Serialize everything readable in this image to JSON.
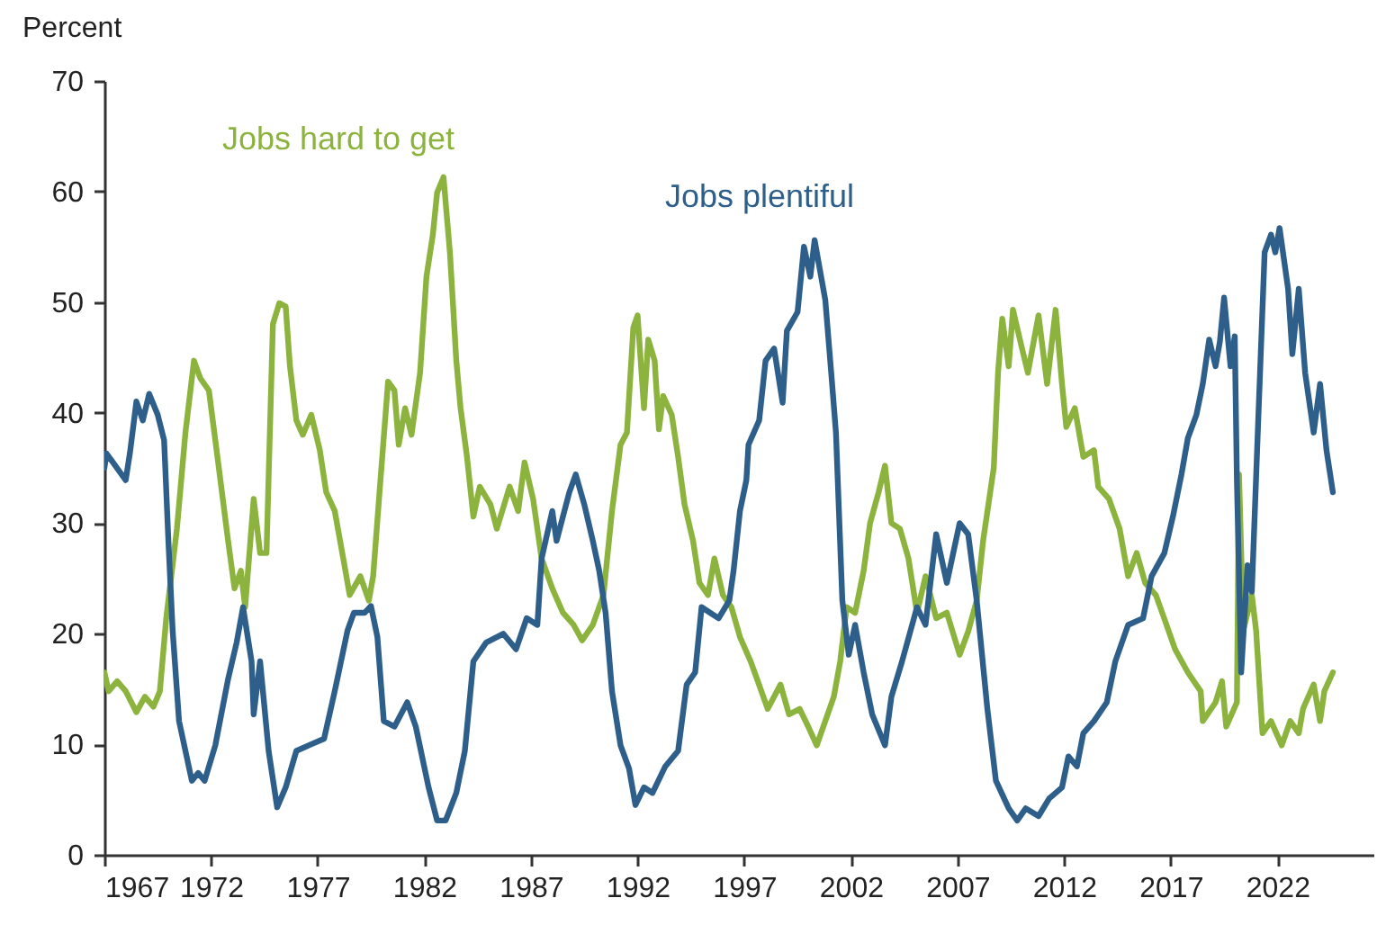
{
  "chart_data": {
    "type": "line",
    "ylabel": "Percent",
    "xlim": [
      1967,
      2026.5
    ],
    "xticks": [
      1967,
      1972,
      1977,
      1982,
      1987,
      1992,
      1997,
      2002,
      2007,
      2012,
      2017,
      2022
    ],
    "ylim": [
      0,
      70
    ],
    "yticks": [
      0,
      10,
      20,
      30,
      40,
      50,
      60,
      70
    ],
    "grid": false,
    "legend": false,
    "marker": "none",
    "line_style": "solid",
    "series": [
      {
        "name": "Jobs hard to get",
        "color": "#8db33f",
        "x": [
          1967.0,
          1967.2,
          1967.6,
          1968.0,
          1968.5,
          1968.9,
          1969.3,
          1969.6,
          1969.9,
          1970.4,
          1970.8,
          1971.2,
          1971.5,
          1971.9,
          1972.3,
          1972.8,
          1973.1,
          1973.4,
          1973.6,
          1974.0,
          1974.3,
          1974.6,
          1974.9,
          1975.2,
          1975.5,
          1975.7,
          1976.0,
          1976.3,
          1976.7,
          1977.1,
          1977.4,
          1977.8,
          1978.2,
          1978.5,
          1979.0,
          1979.4,
          1979.6,
          1979.9,
          1980.3,
          1980.6,
          1980.8,
          1981.1,
          1981.4,
          1981.8,
          1982.1,
          1982.4,
          1982.6,
          1982.9,
          1983.2,
          1983.5,
          1983.7,
          1984.0,
          1984.3,
          1984.6,
          1985.1,
          1985.4,
          1986.0,
          1986.4,
          1986.7,
          1987.1,
          1987.5,
          1988.0,
          1988.5,
          1989.0,
          1989.4,
          1989.9,
          1990.4,
          1990.8,
          1991.2,
          1991.5,
          1991.8,
          1992.0,
          1992.3,
          1992.5,
          1992.8,
          1993.0,
          1993.2,
          1993.6,
          1993.9,
          1994.2,
          1994.6,
          1994.9,
          1995.3,
          1995.6,
          1996.0,
          1996.4,
          1996.8,
          1997.3,
          1997.6,
          1998.1,
          1998.7,
          1999.1,
          1999.6,
          2000.0,
          2000.4,
          2000.8,
          2001.2,
          2001.5,
          2001.8,
          2002.2,
          2002.6,
          2002.9,
          2003.3,
          2003.6,
          2003.9,
          2004.3,
          2004.7,
          2005.1,
          2005.5,
          2006.0,
          2006.5,
          2007.1,
          2007.5,
          2007.9,
          2008.2,
          2008.7,
          2008.9,
          2009.1,
          2009.4,
          2009.6,
          2010.0,
          2010.3,
          2010.8,
          2011.2,
          2011.6,
          2011.9,
          2012.1,
          2012.5,
          2012.9,
          2013.4,
          2013.6,
          2014.1,
          2014.6,
          2015.0,
          2015.4,
          2015.8,
          2016.3,
          2016.8,
          2017.2,
          2017.8,
          2018.4,
          2018.5,
          2019.1,
          2019.4,
          2019.6,
          2020.1,
          2020.2,
          2020.4,
          2020.8,
          2021.0,
          2021.3,
          2021.7,
          2022.2,
          2022.6,
          2023.0,
          2023.2,
          2023.7,
          2024.0,
          2024.2,
          2024.6
        ],
        "values": [
          16.5,
          14.8,
          15.7,
          14.8,
          12.9,
          14.3,
          13.4,
          14.8,
          21.4,
          29.5,
          38.2,
          44.7,
          43.1,
          42.0,
          36.0,
          28.4,
          24.1,
          25.7,
          22.4,
          32.2,
          27.3,
          27.3,
          48.0,
          49.9,
          49.6,
          44.2,
          39.3,
          38.0,
          39.8,
          36.6,
          32.8,
          31.1,
          26.8,
          23.5,
          25.2,
          23.0,
          25.2,
          32.8,
          42.8,
          42.0,
          37.1,
          40.4,
          38.0,
          43.6,
          52.3,
          56.1,
          59.9,
          61.3,
          54.5,
          44.7,
          40.4,
          36.0,
          30.6,
          33.3,
          31.7,
          29.5,
          33.3,
          31.1,
          35.5,
          32.2,
          26.8,
          24.1,
          21.9,
          20.8,
          19.4,
          20.8,
          23.5,
          31.1,
          37.1,
          38.2,
          47.7,
          48.8,
          40.4,
          46.6,
          44.7,
          38.5,
          41.5,
          39.8,
          36.0,
          31.7,
          28.4,
          24.6,
          23.5,
          26.8,
          23.5,
          22.4,
          19.7,
          17.5,
          15.9,
          13.2,
          15.4,
          12.7,
          13.2,
          11.6,
          9.9,
          12.1,
          14.3,
          17.5,
          22.4,
          21.9,
          25.7,
          30.0,
          32.8,
          35.2,
          30.0,
          29.5,
          26.8,
          21.9,
          25.2,
          21.4,
          21.9,
          18.1,
          20.2,
          23.0,
          28.4,
          35.0,
          43.6,
          48.5,
          44.2,
          49.3,
          46.0,
          43.6,
          48.8,
          42.6,
          49.3,
          42.6,
          38.7,
          40.4,
          36.0,
          36.6,
          33.3,
          32.2,
          29.5,
          25.2,
          27.3,
          24.6,
          23.5,
          20.8,
          18.6,
          16.5,
          14.8,
          12.1,
          13.8,
          15.7,
          11.6,
          13.8,
          34.4,
          20.3,
          23.5,
          20.3,
          11.0,
          12.1,
          9.9,
          12.1,
          11.0,
          13.2,
          15.4,
          12.1,
          14.8,
          16.5
        ]
      },
      {
        "name": "Jobs plentiful",
        "color": "#2e5f8a",
        "x": [
          1967.0,
          1967.1,
          1968.0,
          1968.2,
          1968.5,
          1968.8,
          1969.1,
          1969.5,
          1969.8,
          1970.0,
          1970.2,
          1970.5,
          1971.1,
          1971.4,
          1971.7,
          1972.2,
          1972.8,
          1973.2,
          1973.5,
          1973.9,
          1974.0,
          1974.3,
          1974.7,
          1975.1,
          1975.5,
          1976.0,
          1976.7,
          1977.3,
          1977.8,
          1978.4,
          1978.7,
          1979.2,
          1979.5,
          1979.8,
          1980.1,
          1980.6,
          1981.2,
          1981.6,
          1982.2,
          1982.6,
          1983.0,
          1983.5,
          1983.9,
          1984.3,
          1984.9,
          1985.7,
          1986.3,
          1986.8,
          1987.3,
          1987.5,
          1988.0,
          1988.2,
          1988.8,
          1989.1,
          1989.5,
          1989.9,
          1990.2,
          1990.5,
          1990.8,
          1991.2,
          1991.6,
          1991.9,
          1992.3,
          1992.7,
          1993.3,
          1993.9,
          1994.3,
          1994.7,
          1995.0,
          1995.4,
          1995.8,
          1996.3,
          1996.5,
          1996.8,
          1997.1,
          1997.2,
          1997.7,
          1998.0,
          1998.4,
          1998.8,
          1999.0,
          1999.5,
          1999.8,
          2000.1,
          2000.3,
          2000.8,
          2001.1,
          2001.3,
          2001.6,
          2001.9,
          2002.2,
          2002.6,
          2003.0,
          2003.6,
          2003.9,
          2004.4,
          2005.1,
          2005.5,
          2006.0,
          2006.5,
          2007.1,
          2007.5,
          2007.9,
          2008.4,
          2008.8,
          2009.4,
          2009.8,
          2010.2,
          2010.8,
          2011.3,
          2011.9,
          2012.2,
          2012.6,
          2012.9,
          2013.4,
          2014.0,
          2014.4,
          2015.0,
          2015.7,
          2016.1,
          2016.7,
          2017.1,
          2017.5,
          2017.8,
          2018.2,
          2018.5,
          2018.8,
          2019.1,
          2019.3,
          2019.5,
          2019.8,
          2020.0,
          2020.1,
          2020.3,
          2020.6,
          2020.8,
          2021.1,
          2021.4,
          2021.7,
          2021.9,
          2022.1,
          2022.5,
          2022.7,
          2023.0,
          2023.3,
          2023.7,
          2024.0,
          2024.3,
          2024.6
        ],
        "values": [
          35.0,
          36.3,
          33.9,
          36.4,
          41.0,
          39.3,
          41.7,
          39.8,
          37.5,
          28.4,
          20.3,
          12.1,
          6.7,
          7.4,
          6.7,
          9.9,
          15.9,
          19.2,
          22.4,
          17.5,
          12.7,
          17.5,
          9.4,
          4.3,
          6.1,
          9.4,
          10.0,
          10.5,
          14.8,
          20.3,
          21.9,
          21.9,
          22.5,
          19.7,
          12.1,
          11.6,
          13.8,
          11.6,
          6.1,
          3.1,
          3.1,
          5.6,
          9.4,
          17.5,
          19.2,
          20.0,
          18.6,
          21.4,
          20.8,
          26.8,
          31.1,
          28.4,
          32.8,
          34.4,
          31.7,
          28.4,
          25.7,
          21.9,
          14.8,
          9.9,
          7.8,
          4.5,
          6.1,
          5.6,
          8.0,
          9.4,
          15.4,
          16.5,
          22.4,
          21.9,
          21.4,
          23.0,
          25.7,
          31.1,
          33.9,
          37.1,
          39.3,
          44.7,
          45.8,
          40.9,
          47.4,
          49.1,
          55.0,
          52.3,
          55.6,
          50.2,
          43.1,
          38.2,
          23.0,
          18.1,
          20.8,
          16.5,
          12.7,
          9.9,
          14.3,
          17.5,
          22.4,
          20.8,
          29.0,
          24.6,
          30.0,
          29.0,
          23.0,
          13.2,
          6.7,
          4.2,
          3.1,
          4.2,
          3.5,
          5.1,
          6.1,
          8.9,
          8.0,
          11.0,
          12.1,
          13.8,
          17.5,
          20.8,
          21.4,
          25.2,
          27.3,
          30.6,
          34.4,
          37.7,
          39.8,
          42.6,
          46.6,
          44.2,
          46.4,
          50.4,
          44.2,
          46.9,
          33.9,
          16.5,
          26.2,
          23.8,
          39.3,
          54.5,
          56.1,
          54.5,
          56.7,
          51.2,
          45.3,
          51.2,
          43.6,
          38.2,
          42.6,
          36.6,
          32.8
        ]
      }
    ]
  }
}
